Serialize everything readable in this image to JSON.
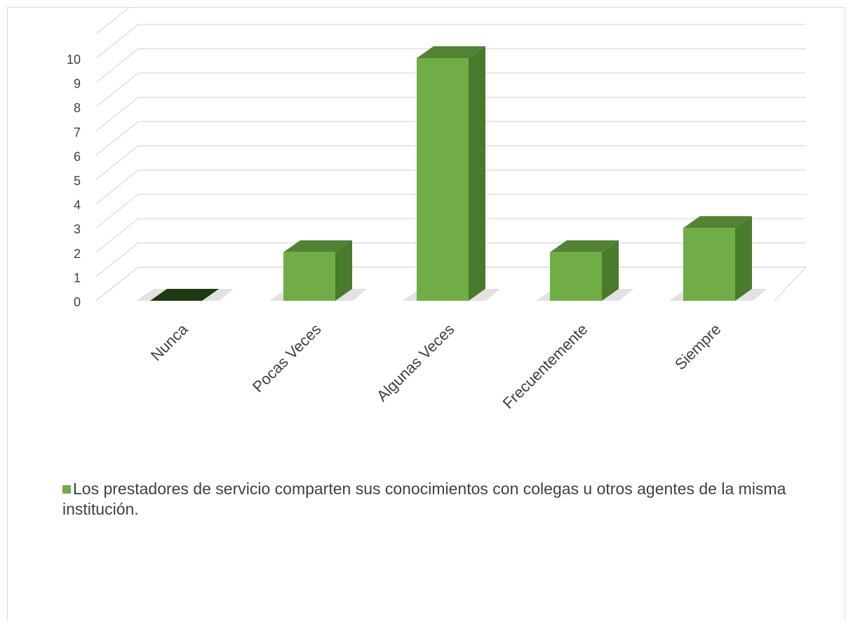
{
  "chart_data": {
    "type": "bar",
    "categories": [
      "Nunca",
      "Pocas Veces",
      "Algunas Veces",
      "Frecuentemente",
      "Siempre"
    ],
    "series": [
      {
        "name": "Los prestadores de servicio comparten sus conocimientos con colegas u otros agentes de la misma institución.",
        "values": [
          0,
          2,
          10,
          2,
          3
        ]
      }
    ],
    "y_ticks": [
      "0",
      "1",
      "2",
      "3",
      "4",
      "5",
      "6",
      "7",
      "8",
      "9",
      "10"
    ],
    "ylim": [
      0,
      11
    ],
    "grid": true,
    "legend_position": "bottom-left",
    "three_d": true,
    "colors": {
      "bar_front": "#70ad47",
      "bar_side": "#4a7a2c",
      "bar_top": "#548235",
      "zero_bar": "#1e3a10",
      "gridline": "#d9d9d9",
      "tick_text": "#404040"
    }
  }
}
